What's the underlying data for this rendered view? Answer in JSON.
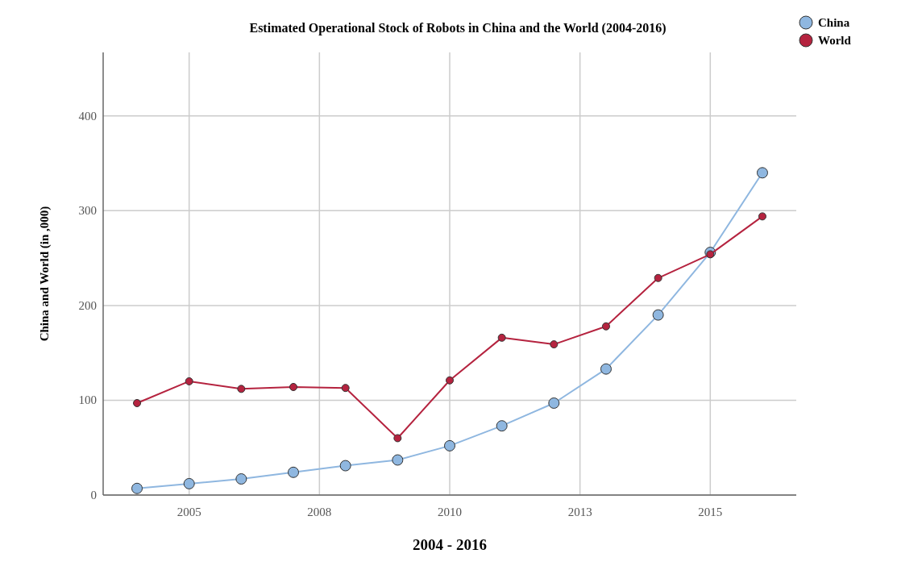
{
  "chart_data": {
    "type": "line",
    "title": "Estimated Operational Stock of Robots in China and the World (2004-2016)",
    "xlabel": "2004 - 2016",
    "ylabel": "China and World (in ,000)",
    "x": [
      2004,
      2005,
      2006,
      2007,
      2008,
      2009,
      2010,
      2011,
      2012,
      2013,
      2014,
      2015,
      2016
    ],
    "xlim": [
      2003.35,
      2016.65
    ],
    "xticks": [
      2005,
      {
        "value": 2007.5,
        "label": "2008"
      },
      2010,
      {
        "value": 2012.5,
        "label": "2013"
      },
      2015
    ],
    "ylim": [
      0,
      467
    ],
    "yticks": [
      0,
      100,
      200,
      300,
      400
    ],
    "series": [
      {
        "name": "China",
        "color": "#8fb7e0",
        "values": [
          7,
          12,
          17,
          24,
          31,
          37,
          52,
          73,
          97,
          133,
          190,
          256,
          340
        ]
      },
      {
        "name": "World",
        "color": "#b5233f",
        "values": [
          97,
          120,
          112,
          114,
          113,
          60,
          121,
          166,
          159,
          178,
          229,
          254,
          294
        ]
      }
    ],
    "grid": true,
    "legend": "top right",
    "marker": "circle",
    "line_style": "solid"
  }
}
